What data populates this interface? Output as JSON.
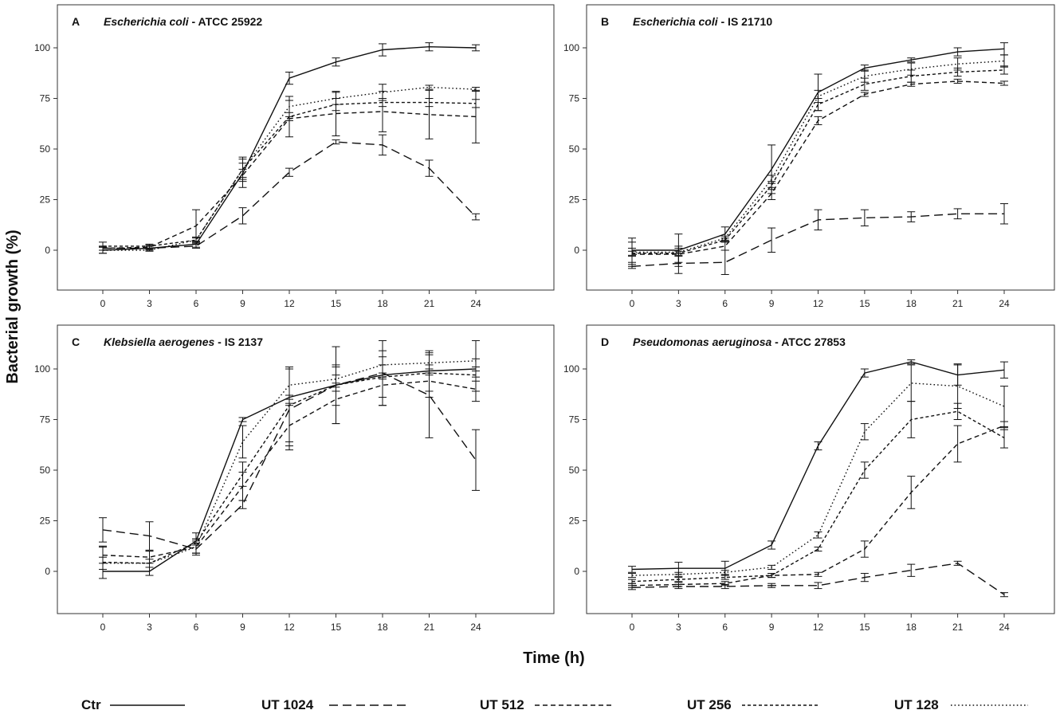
{
  "figure": {
    "ylabel": "Bacterial growth (%)",
    "xlabel": "Time (h)"
  },
  "legend": [
    {
      "label": "Ctr",
      "dash": "solid"
    },
    {
      "label": "UT 1024",
      "dash": "longdash"
    },
    {
      "label": "UT 512",
      "dash": "dash"
    },
    {
      "label": "UT 256",
      "dash": "shortdash"
    },
    {
      "label": "UT 128",
      "dash": "dot"
    }
  ],
  "chart_data": [
    {
      "type": "line",
      "letter": "A",
      "title_italic": "Escherichia coli",
      "title_rest": " - ATCC 25922",
      "x": [
        0,
        3,
        6,
        9,
        12,
        15,
        18,
        21,
        24
      ],
      "xticks": [
        "0",
        "3",
        "6",
        "9",
        "12",
        "15",
        "18",
        "21",
        "24"
      ],
      "yticks": [
        "0",
        "25",
        "50",
        "75",
        "100"
      ],
      "ylim": [
        -17,
        120
      ],
      "series": [
        {
          "name": "Ctr",
          "values": [
            0,
            1,
            3,
            38,
            85,
            93,
            99,
            100.5,
            100
          ],
          "errors": [
            1.5,
            1,
            1.5,
            2,
            3,
            2,
            3,
            2,
            1.5
          ]
        },
        {
          "name": "UT 1024",
          "values": [
            1,
            1,
            2,
            17,
            38.5,
            53.5,
            52,
            40.5,
            16.5
          ],
          "errors": [
            1,
            1,
            1,
            4,
            2,
            1,
            5,
            4,
            1.5
          ]
        },
        {
          "name": "UT 512",
          "values": [
            1,
            1.5,
            12,
            37,
            65,
            67.5,
            68.5,
            67,
            66
          ],
          "errors": [
            1,
            1,
            8,
            6,
            9,
            11,
            10,
            12,
            13
          ]
        },
        {
          "name": "UT 256",
          "values": [
            2,
            2,
            5,
            40,
            66,
            72,
            73,
            73,
            72.5
          ],
          "errors": [
            2,
            1,
            1.5,
            6,
            2,
            3,
            2,
            2,
            2
          ]
        },
        {
          "name": "UT 128",
          "values": [
            0,
            0,
            5,
            40,
            71,
            75,
            78,
            80.5,
            79.5
          ],
          "errors": [
            1.5,
            0.5,
            1,
            5,
            5,
            3,
            4,
            1,
            1
          ]
        }
      ]
    },
    {
      "type": "line",
      "letter": "B",
      "title_italic": "Escherichia coli",
      "title_rest": " - IS 21710",
      "x": [
        0,
        3,
        6,
        9,
        12,
        15,
        18,
        21,
        24
      ],
      "xticks": [
        "0",
        "3",
        "6",
        "9",
        "12",
        "15",
        "18",
        "21",
        "24"
      ],
      "yticks": [
        "0",
        "25",
        "50",
        "75",
        "100"
      ],
      "ylim": [
        -17,
        120
      ],
      "series": [
        {
          "name": "Ctr",
          "values": [
            0,
            0,
            8,
            40,
            78,
            90,
            94,
            98,
            99.5
          ],
          "errors": [
            6,
            8,
            3.5,
            12,
            9,
            1.5,
            1,
            2,
            3
          ]
        },
        {
          "name": "UT 1024",
          "values": [
            -8,
            -6.5,
            -6,
            5,
            15,
            16,
            16.5,
            18,
            18
          ],
          "errors": [
            1,
            5,
            6,
            6,
            5,
            4,
            2.5,
            2.5,
            5
          ]
        },
        {
          "name": "UT 512",
          "values": [
            -2,
            -2,
            2,
            28,
            64,
            77,
            82,
            83.5,
            82.5
          ],
          "errors": [
            6,
            4,
            2,
            3,
            2,
            1,
            1,
            1,
            1
          ]
        },
        {
          "name": "UT 256",
          "values": [
            -1.5,
            -1.5,
            5,
            32,
            72,
            82,
            86,
            88,
            89
          ],
          "errors": [
            1,
            1,
            1,
            2,
            3,
            3,
            3,
            2,
            2
          ]
        },
        {
          "name": "UT 128",
          "values": [
            -1,
            -1,
            6,
            35,
            76,
            86,
            89.5,
            92,
            93.5
          ],
          "errors": [
            2,
            2,
            1,
            2,
            3,
            3,
            3,
            3,
            3
          ]
        }
      ]
    },
    {
      "type": "line",
      "letter": "C",
      "title_italic": "Klebsiella aerogenes",
      "title_rest": " - IS 2137",
      "x": [
        0,
        3,
        6,
        9,
        12,
        15,
        18,
        21,
        24
      ],
      "xticks": [
        "0",
        "3",
        "6",
        "9",
        "12",
        "15",
        "18",
        "21",
        "24"
      ],
      "yticks": [
        "0",
        "25",
        "50",
        "75",
        "100"
      ],
      "ylim": [
        -17,
        120
      ],
      "series": [
        {
          "name": "Ctr",
          "values": [
            0,
            0,
            15,
            75,
            86,
            92,
            97,
            99,
            100
          ],
          "errors": [
            0,
            0,
            1,
            1,
            1,
            1,
            1,
            1,
            1
          ]
        },
        {
          "name": "UT 1024",
          "values": [
            20.5,
            17.5,
            11,
            33,
            80,
            92,
            98,
            87,
            55
          ],
          "errors": [
            6,
            7,
            2,
            2,
            20,
            19,
            16,
            21,
            15
          ]
        },
        {
          "name": "UT 512",
          "values": [
            8,
            7,
            12,
            42,
            72,
            85,
            92,
            94,
            90
          ],
          "errors": [
            4,
            3,
            3,
            7,
            10,
            12,
            10,
            8,
            6
          ]
        },
        {
          "name": "UT 256",
          "values": [
            4.5,
            4,
            14,
            48,
            82,
            92,
            96,
            98,
            97
          ],
          "errors": [
            8,
            6,
            5,
            6,
            18,
            10,
            10,
            9,
            8
          ]
        },
        {
          "name": "UT 128",
          "values": [
            4,
            4,
            12,
            64,
            92,
            95,
            102,
            103,
            104
          ],
          "errors": [
            3,
            2,
            4,
            8,
            9,
            6,
            7,
            6,
            10
          ]
        }
      ]
    },
    {
      "type": "line",
      "letter": "D",
      "title_italic": "Pseudomonas aeruginosa",
      "title_rest": " - ATCC 27853",
      "x": [
        0,
        3,
        6,
        9,
        12,
        15,
        18,
        21,
        24
      ],
      "xticks": [
        "0",
        "3",
        "6",
        "9",
        "12",
        "15",
        "18",
        "21",
        "24"
      ],
      "yticks": [
        "0",
        "25",
        "50",
        "75",
        "100"
      ],
      "ylim": [
        -17,
        120
      ],
      "series": [
        {
          "name": "Ctr",
          "values": [
            1,
            1.5,
            1.5,
            13,
            62,
            98,
            103.5,
            97,
            99.5
          ],
          "errors": [
            1.5,
            3,
            3.5,
            2,
            2,
            2,
            1,
            5,
            4
          ]
        },
        {
          "name": "UT 1024",
          "values": [
            -8,
            -7.5,
            -7.5,
            -7,
            -7,
            -3,
            0.5,
            4,
            -11.5
          ],
          "errors": [
            1,
            1,
            1,
            1,
            1.5,
            2,
            3,
            1,
            1
          ]
        },
        {
          "name": "UT 512",
          "values": [
            -7,
            -6.5,
            -6,
            -2,
            -1.5,
            11,
            39,
            63,
            72
          ],
          "errors": [
            1,
            1,
            1,
            1,
            1,
            4,
            8,
            9,
            2
          ]
        },
        {
          "name": "UT 256",
          "values": [
            -5,
            -4,
            -3,
            -2,
            11,
            50,
            75,
            79,
            66
          ],
          "errors": [
            1,
            1,
            1,
            1,
            1,
            4,
            9,
            4,
            5
          ]
        },
        {
          "name": "UT 128",
          "values": [
            -2,
            -1.5,
            -0.5,
            2,
            18,
            69,
            93,
            91.5,
            81.5
          ],
          "errors": [
            1,
            1,
            1,
            1,
            1.5,
            4,
            9,
            11,
            10
          ]
        }
      ]
    }
  ]
}
